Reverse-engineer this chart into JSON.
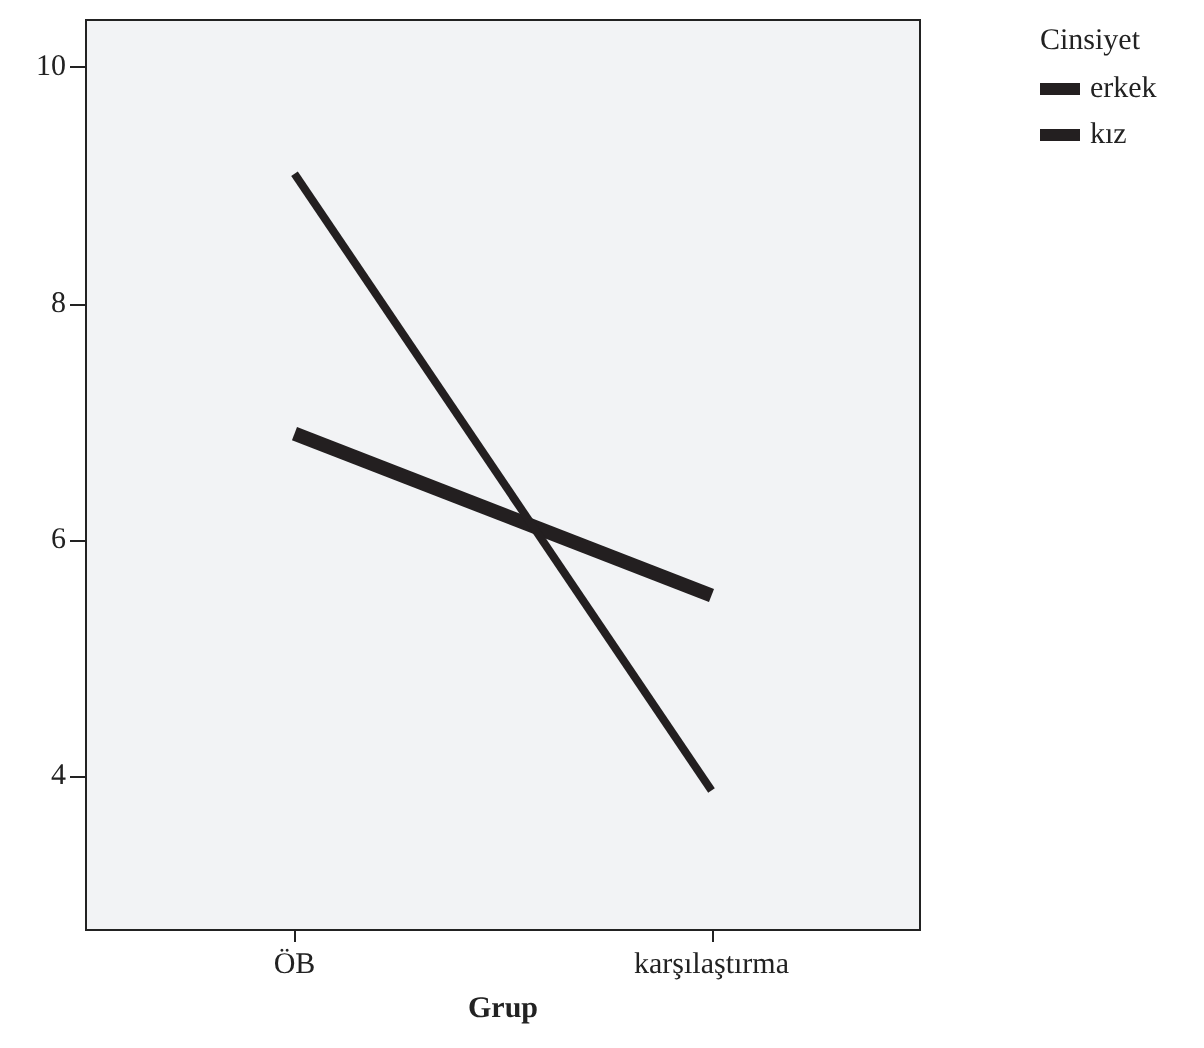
{
  "chart_data": {
    "type": "line",
    "xlabel": "Grup",
    "legend_title": "Cinsiyet",
    "categories": [
      "ÖB",
      "karşılaştırma"
    ],
    "series": [
      {
        "name": "erkek",
        "color": "#231f20",
        "values": [
          6.9,
          5.53
        ]
      },
      {
        "name": "kız",
        "color": "#231f20",
        "values": [
          9.1,
          3.88
        ]
      }
    ],
    "ylim": [
      2.7,
      10.4
    ],
    "yticks": [
      4,
      6,
      8,
      10
    ],
    "grid": false,
    "legend": "top right",
    "marker": "none",
    "line_style": "solid"
  }
}
